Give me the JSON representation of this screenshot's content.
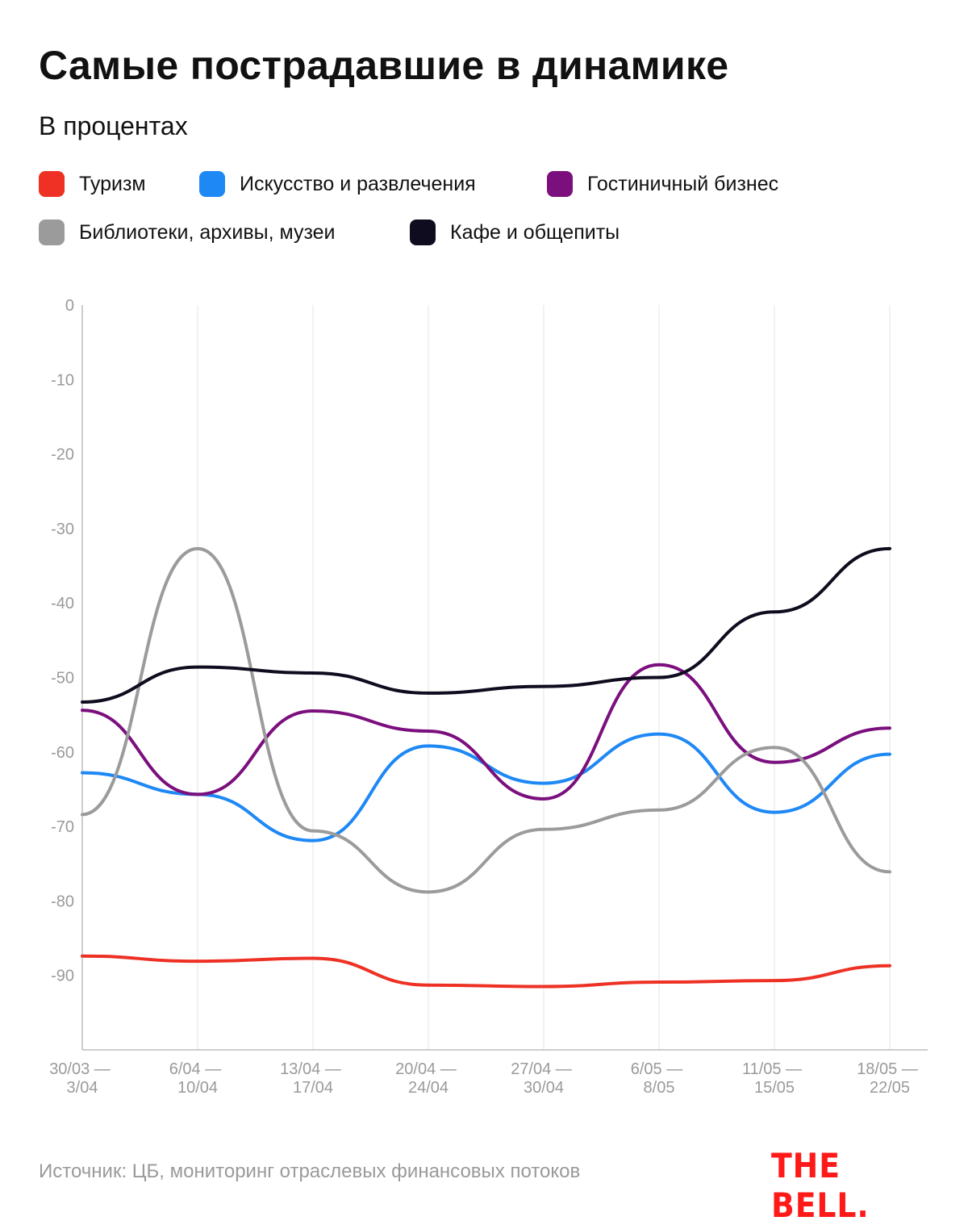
{
  "chart_data": {
    "type": "line",
    "title": "Самые пострадавшие в динамике",
    "subtitle": "В процентах",
    "categories": [
      [
        "30/03 —",
        "3/04"
      ],
      [
        "6/04 —",
        "10/04"
      ],
      [
        "13/04 —",
        "17/04"
      ],
      [
        "20/04 —",
        "24/04"
      ],
      [
        "27/04 —",
        "30/04"
      ],
      [
        "6/05 —",
        "8/05"
      ],
      [
        "11/05 —",
        "15/05"
      ],
      [
        "18/05 —",
        "22/05"
      ]
    ],
    "ylim": [
      -100,
      0
    ],
    "yticks": [
      0,
      -10,
      -20,
      -30,
      -40,
      -50,
      -60,
      -70,
      -80,
      -90
    ],
    "grid": "vertical",
    "legend_placement": "top",
    "series": [
      {
        "name": "Туризм",
        "color": "#ee3124",
        "values": [
          -87.4,
          -88.1,
          -87.7,
          -91.3,
          -91.5,
          -90.9,
          -90.7,
          -88.7
        ]
      },
      {
        "name": "Искусство и развлечения",
        "color": "#1e88f5",
        "values": [
          -62.8,
          -65.7,
          -71.9,
          -59.2,
          -64.2,
          -57.6,
          -68.1,
          -60.3
        ]
      },
      {
        "name": "Гостиничный бизнес",
        "color": "#7b0f7e",
        "values": [
          -54.4,
          -65.7,
          -54.5,
          -57.2,
          -66.3,
          -48.3,
          -61.4,
          -56.8
        ]
      },
      {
        "name": "Библиотеки, архивы, музеи",
        "color": "#9b9b9b",
        "values": [
          -68.4,
          -32.7,
          -70.6,
          -78.8,
          -70.4,
          -67.8,
          -59.4,
          -76.1
        ]
      },
      {
        "name": "Кафе и общепиты",
        "color": "#0e0c1e",
        "values": [
          -53.3,
          -48.6,
          -49.4,
          -52.1,
          -51.2,
          -50.0,
          -41.2,
          -32.7
        ]
      }
    ]
  },
  "source": "Источник: ЦБ, мониторинг отраслевых финансовых потоков",
  "logo": "THE BELL."
}
